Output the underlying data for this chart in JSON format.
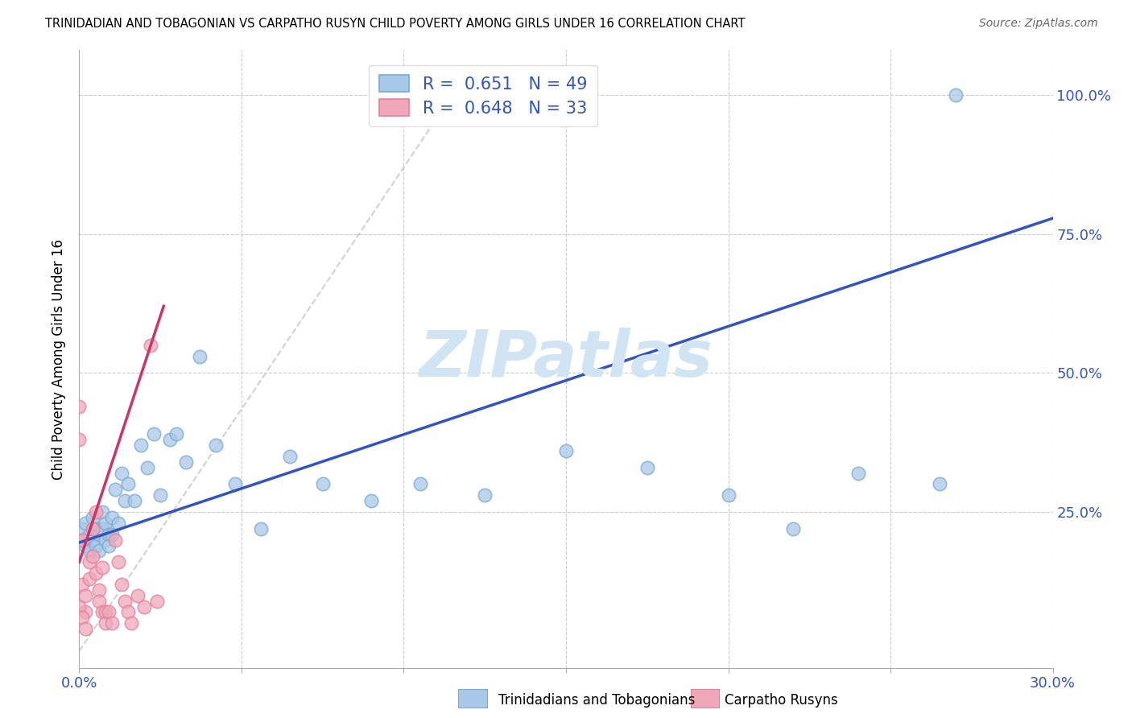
{
  "title": "TRINIDADIAN AND TOBAGONIAN VS CARPATHO RUSYN CHILD POVERTY AMONG GIRLS UNDER 16 CORRELATION CHART",
  "source": "Source: ZipAtlas.com",
  "ylabel": "Child Poverty Among Girls Under 16",
  "xlim": [
    0.0,
    0.3
  ],
  "ylim": [
    -0.03,
    1.08
  ],
  "xticks": [
    0.0,
    0.05,
    0.1,
    0.15,
    0.2,
    0.25,
    0.3
  ],
  "xtick_labels": [
    "0.0%",
    "",
    "",
    "",
    "",
    "",
    "30.0%"
  ],
  "yticks": [
    0.0,
    0.25,
    0.5,
    0.75,
    1.0
  ],
  "ytick_labels_right": [
    "",
    "25.0%",
    "50.0%",
    "75.0%",
    "100.0%"
  ],
  "blue_color": "#a8c8e8",
  "pink_color": "#f0a8b8",
  "blue_edge_color": "#7aaad0",
  "pink_edge_color": "#e080a0",
  "blue_line_color": "#3355bb",
  "pink_line_color": "#cc3366",
  "ref_line_color": "#cccccc",
  "watermark_color": "#d0e4f4",
  "watermark": "ZIPatlas",
  "legend_blue_label": "R =  0.651   N = 49",
  "legend_pink_label": "R =  0.648   N = 33",
  "bottom_label_blue": "Trinidadians and Tobagonians",
  "bottom_label_pink": "Carpatho Rusyns",
  "blue_line_x0": 0.0,
  "blue_line_y0": 0.195,
  "blue_line_x1": 0.3,
  "blue_line_y1": 0.778,
  "pink_line_x0": 0.0,
  "pink_line_y0": 0.16,
  "pink_line_x1": 0.026,
  "pink_line_y1": 0.62,
  "ref_line_x0": 0.0,
  "ref_line_y0": 0.0,
  "ref_line_x1": 0.115,
  "ref_line_y1": 1.0,
  "blue_scatter_x": [
    0.001,
    0.001,
    0.002,
    0.002,
    0.003,
    0.003,
    0.004,
    0.004,
    0.005,
    0.005,
    0.006,
    0.006,
    0.007,
    0.007,
    0.008,
    0.008,
    0.009,
    0.009,
    0.01,
    0.01,
    0.011,
    0.012,
    0.013,
    0.014,
    0.015,
    0.017,
    0.019,
    0.021,
    0.023,
    0.025,
    0.028,
    0.03,
    0.033,
    0.037,
    0.042,
    0.048,
    0.056,
    0.065,
    0.075,
    0.09,
    0.105,
    0.125,
    0.15,
    0.175,
    0.2,
    0.22,
    0.24,
    0.265,
    0.27
  ],
  "blue_scatter_y": [
    0.22,
    0.2,
    0.23,
    0.19,
    0.21,
    0.18,
    0.24,
    0.2,
    0.22,
    0.19,
    0.21,
    0.18,
    0.25,
    0.22,
    0.2,
    0.23,
    0.21,
    0.19,
    0.24,
    0.21,
    0.29,
    0.23,
    0.32,
    0.27,
    0.3,
    0.27,
    0.37,
    0.33,
    0.39,
    0.28,
    0.38,
    0.39,
    0.34,
    0.53,
    0.37,
    0.3,
    0.22,
    0.35,
    0.3,
    0.27,
    0.3,
    0.28,
    0.36,
    0.33,
    0.28,
    0.22,
    0.32,
    0.3,
    1.0
  ],
  "pink_scatter_x": [
    0.0,
    0.0,
    0.001,
    0.001,
    0.002,
    0.002,
    0.003,
    0.003,
    0.004,
    0.004,
    0.005,
    0.005,
    0.006,
    0.006,
    0.007,
    0.007,
    0.008,
    0.008,
    0.009,
    0.01,
    0.011,
    0.012,
    0.013,
    0.014,
    0.015,
    0.016,
    0.018,
    0.02,
    0.022,
    0.024,
    0.0,
    0.001,
    0.002
  ],
  "pink_scatter_y": [
    0.44,
    0.38,
    0.2,
    0.12,
    0.1,
    0.07,
    0.16,
    0.13,
    0.22,
    0.17,
    0.25,
    0.14,
    0.11,
    0.09,
    0.07,
    0.15,
    0.07,
    0.05,
    0.07,
    0.05,
    0.2,
    0.16,
    0.12,
    0.09,
    0.07,
    0.05,
    0.1,
    0.08,
    0.55,
    0.09,
    0.08,
    0.06,
    0.04
  ]
}
